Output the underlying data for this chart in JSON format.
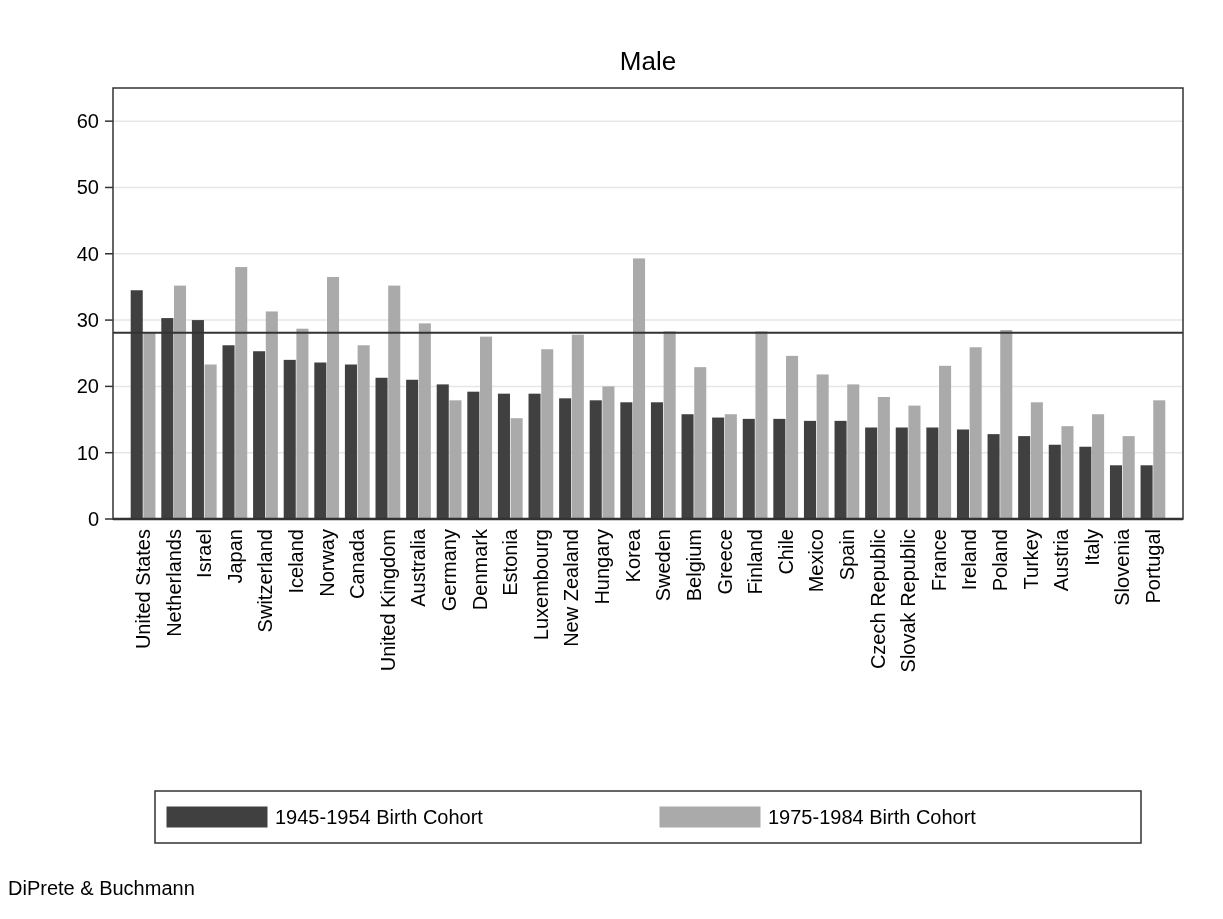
{
  "chart_data": {
    "type": "bar",
    "title": "Male",
    "categories": [
      "United States",
      "Netherlands",
      "Israel",
      "Japan",
      "Switzerland",
      "Iceland",
      "Norway",
      "Canada",
      "United Kingdom",
      "Australia",
      "Germany",
      "Denmark",
      "Estonia",
      "Luxembourg",
      "New Zealand",
      "Hungary",
      "Korea",
      "Sweden",
      "Belgium",
      "Greece",
      "Finland",
      "Chile",
      "Mexico",
      "Spain",
      "Czech Republic",
      "Slovak Republic",
      "France",
      "Ireland",
      "Poland",
      "Turkey",
      "Austria",
      "Italy",
      "Slovenia",
      "Portugal"
    ],
    "series": [
      {
        "name": "1945-1954 Birth Cohort",
        "color": "#404040",
        "values": [
          34.5,
          30.3,
          30.0,
          26.2,
          25.3,
          24.0,
          23.6,
          23.3,
          21.3,
          21.0,
          20.3,
          19.2,
          18.9,
          18.9,
          18.2,
          17.9,
          17.6,
          17.6,
          15.8,
          15.3,
          15.1,
          15.1,
          14.8,
          14.8,
          13.8,
          13.8,
          13.8,
          13.5,
          12.8,
          12.5,
          11.2,
          10.9,
          8.1,
          8.1
        ]
      },
      {
        "name": "1975-1984 Birth Cohort",
        "color": "#aaaaaa",
        "values": [
          28.2,
          35.2,
          23.3,
          38.0,
          31.3,
          28.7,
          36.5,
          26.2,
          35.2,
          29.5,
          17.9,
          27.5,
          15.2,
          25.6,
          27.8,
          20.0,
          39.3,
          28.3,
          22.9,
          15.8,
          28.3,
          24.6,
          21.8,
          20.3,
          18.4,
          17.1,
          23.1,
          25.9,
          28.5,
          17.6,
          14.0,
          15.8,
          12.5,
          17.9
        ]
      }
    ],
    "ylim": [
      0,
      65
    ],
    "yticks": [
      0,
      10,
      20,
      30,
      40,
      50,
      60
    ],
    "grid": "y",
    "legend": "bottom",
    "ref_lines": [
      {
        "axis": "y",
        "value": 28.1,
        "label": null,
        "color": "#333333"
      }
    ],
    "annotations": [
      "DiPrete & Buchmann"
    ]
  }
}
